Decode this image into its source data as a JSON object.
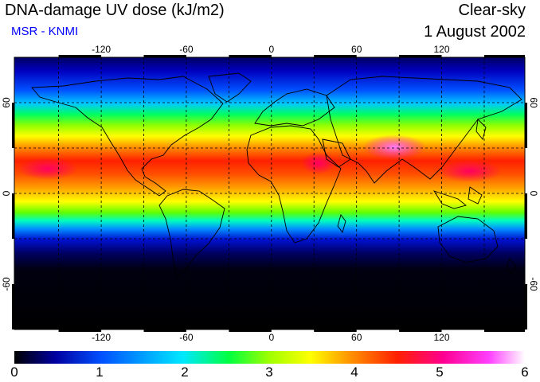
{
  "header": {
    "title": "DNA-damage UV dose (kJ/m2)",
    "subtitle": "MSR - KNMI",
    "sky_condition": "Clear-sky",
    "date": "1 August 2002"
  },
  "colors": {
    "subtitle": "#0000ff",
    "grid_line": "#000000",
    "coastline": "#000000",
    "scale": [
      "#000000",
      "#0000a0",
      "#0050ff",
      "#00e8ff",
      "#00ff40",
      "#a0ff00",
      "#ffff00",
      "#ff9000",
      "#ff2000",
      "#ff0090",
      "#ff40ff",
      "#ffffff"
    ]
  },
  "map": {
    "longitude_ticks": [
      "-120",
      "-60",
      "0",
      "60",
      "120"
    ],
    "latitude_ticks": [
      "60",
      "0",
      "-60"
    ],
    "gridlines": "dashed every 30 degrees"
  },
  "colorbar": {
    "min": 0,
    "max": 6,
    "labels": [
      "0",
      "1",
      "2",
      "3",
      "4",
      "5",
      "6"
    ]
  }
}
